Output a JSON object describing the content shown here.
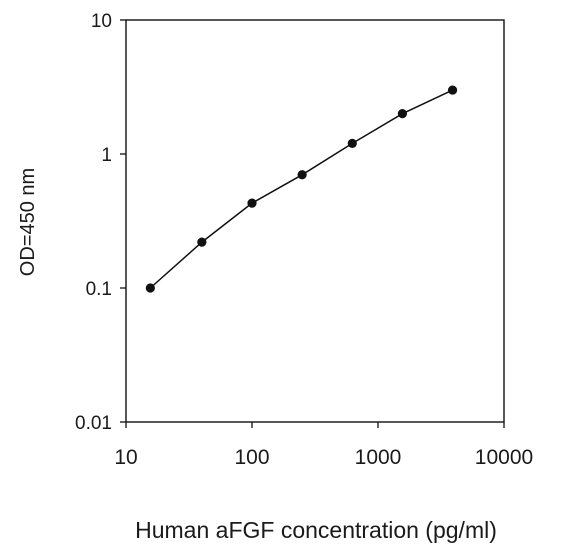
{
  "chart_data": {
    "type": "line",
    "title": "",
    "xlabel": "Human aFGF concentration (pg/ml)",
    "ylabel": "OD=450 nm",
    "x_scale": "log",
    "y_scale": "log",
    "xlim": [
      10,
      10000
    ],
    "ylim": [
      0.01,
      10
    ],
    "x_ticks": [
      "10",
      "100",
      "1000",
      "10000"
    ],
    "y_ticks": [
      "0.01",
      "0.1",
      "1",
      "10"
    ],
    "grid": false,
    "legend": "none",
    "series": [
      {
        "x": [
          15.6,
          40,
          100,
          250,
          625,
          1562,
          3906
        ],
        "y": [
          0.1,
          0.22,
          0.43,
          0.7,
          1.2,
          2.0,
          3.0
        ]
      }
    ],
    "colors": {
      "line": "#111111",
      "marker": "#111111",
      "axis": "#111111"
    }
  }
}
